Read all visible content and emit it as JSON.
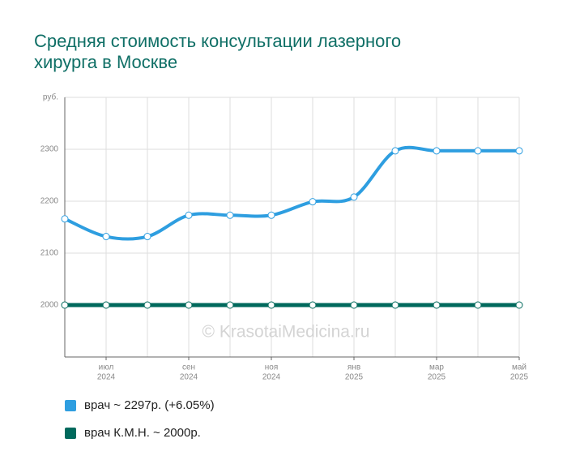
{
  "chart_data": {
    "type": "line",
    "title": "Средняя стоимость консультации лазерного хирурга в Москве",
    "watermark": "© KrasotaiMedicina.ru",
    "categories": [
      null,
      "июл",
      null,
      "сен",
      null,
      "ноя",
      null,
      "янв",
      null,
      "мар",
      null,
      "май"
    ],
    "category_years": [
      null,
      "2024",
      null,
      "2024",
      null,
      "2024",
      null,
      "2025",
      null,
      "2025",
      null,
      "2025"
    ],
    "series": [
      {
        "name": "врач ~ 2297р. (+6.05%)",
        "color": "#2e9ee0",
        "values": [
          2166,
          2132,
          2132,
          2173,
          2173,
          2173,
          2199,
          2208,
          2297,
          2297,
          2297,
          2297
        ]
      },
      {
        "name": "врач К.М.Н. ~ 2000р.",
        "color": "#00695c",
        "values": [
          2000,
          2000,
          2000,
          2000,
          2000,
          2000,
          2000,
          2000,
          2000,
          2000,
          2000,
          2000
        ]
      }
    ],
    "ylim": [
      1900,
      2400
    ],
    "yticks": [
      2000,
      2100,
      2200,
      2300,
      {
        "value": 2400,
        "label": "руб."
      }
    ],
    "grid": true
  }
}
